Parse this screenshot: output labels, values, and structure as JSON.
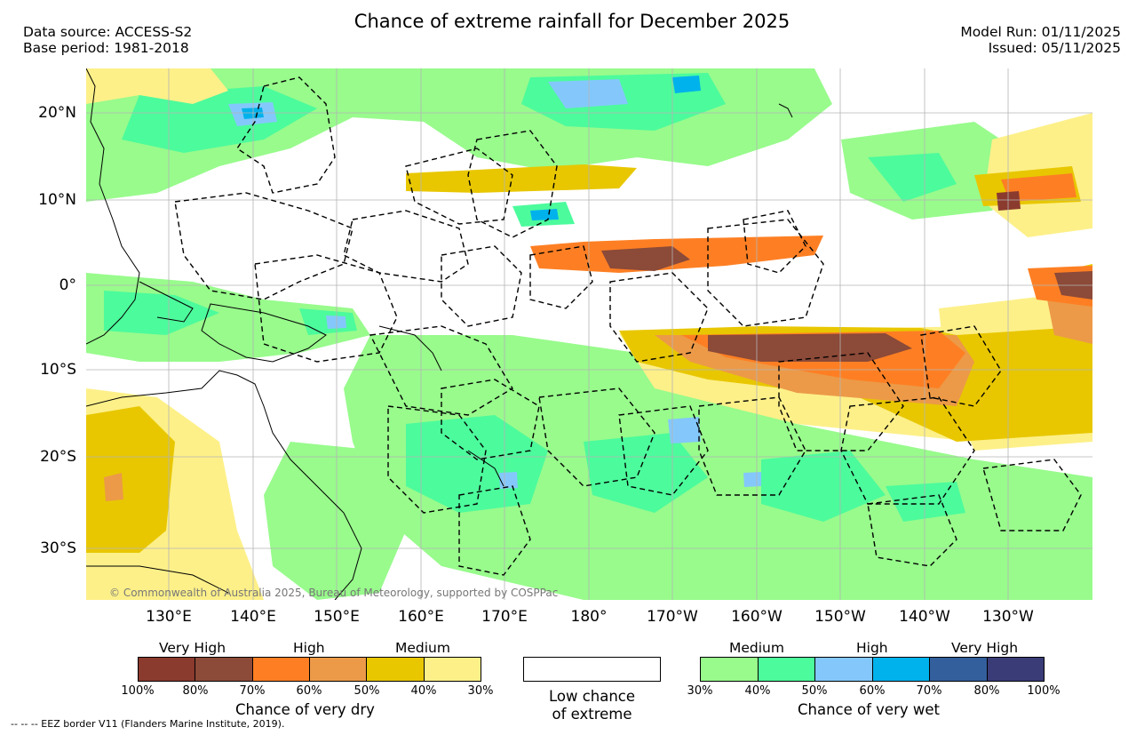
{
  "header": {
    "title": "Chance of extreme rainfall for December 2025",
    "data_source": "Data source: ACCESS-S2",
    "base_period": "Base period: 1981-2018",
    "model_run": "Model Run: 01/11/2025",
    "issued": "Issued: 05/11/2025"
  },
  "map": {
    "copyright": "© Commonwealth of Australia 2025, Bureau of Meteorology, supported by COSPPac",
    "lat_labels": [
      "20°N",
      "10°N",
      "0°",
      "10°S",
      "20°S",
      "30°S"
    ],
    "lon_labels": [
      "130°E",
      "140°E",
      "150°E",
      "160°E",
      "170°E",
      "180°",
      "170°W",
      "160°W",
      "150°W",
      "140°W",
      "130°W"
    ],
    "colors": {
      "land_outline": "#000000",
      "eez_border": "#000000",
      "gridline": "#b4b4b4"
    }
  },
  "legend": {
    "dry": {
      "headings": [
        "Very High",
        "High",
        "Medium"
      ],
      "colors": [
        "#8b3a2e",
        "#8c4a38",
        "#fe7f23",
        "#ec9a48",
        "#e8c700",
        "#fdf089"
      ],
      "ticks": [
        "100%",
        "80%",
        "70%",
        "60%",
        "50%",
        "40%",
        "30%"
      ],
      "caption": "Chance of very dry"
    },
    "low": {
      "color": "#ffffff",
      "caption_line1": "Low chance",
      "caption_line2": "of extreme"
    },
    "wet": {
      "headings": [
        "Medium",
        "High",
        "Very High"
      ],
      "colors": [
        "#98fb8c",
        "#4cfb9c",
        "#84c8fb",
        "#00b2ec",
        "#335f9c",
        "#3a3c78"
      ],
      "ticks": [
        "30%",
        "40%",
        "50%",
        "60%",
        "70%",
        "80%",
        "100%"
      ],
      "caption": "Chance of very wet"
    }
  },
  "footnote": "-- -- -- EEZ border V11 (Flanders Marine Institute, 2019)."
}
